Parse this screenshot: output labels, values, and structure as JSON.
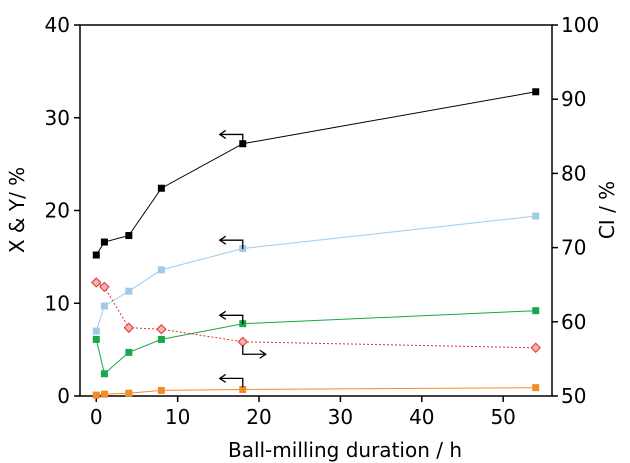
{
  "chart_data": {
    "type": "line",
    "xlabel": "Ball-milling duration / h",
    "ylabel_left": "X & Y/ %",
    "ylabel_right": "CI / %",
    "xlim": [
      -2,
      56
    ],
    "ylim_left": [
      0,
      40
    ],
    "ylim_right": [
      50,
      100
    ],
    "x_ticks": [
      0,
      10,
      20,
      30,
      40,
      50
    ],
    "y_left_ticks": [
      0,
      10,
      20,
      30,
      40
    ],
    "y_right_ticks": [
      50,
      60,
      70,
      80,
      90,
      100
    ],
    "grid": false,
    "series": [
      {
        "axis": "left",
        "color": "#000000",
        "marker": "square",
        "line": "solid",
        "x": [
          0,
          1,
          4,
          8,
          18,
          54
        ],
        "y": [
          15.2,
          16.6,
          17.3,
          22.4,
          27.2,
          32.8
        ]
      },
      {
        "axis": "left",
        "color": "#9fcbe8",
        "marker": "square",
        "line": "solid",
        "x": [
          0,
          1,
          4,
          8,
          18,
          54
        ],
        "y": [
          7.0,
          9.7,
          11.3,
          13.6,
          15.9,
          19.4
        ]
      },
      {
        "axis": "left",
        "color": "#1aa64a",
        "marker": "square",
        "line": "solid",
        "x": [
          0,
          1,
          4,
          8,
          18,
          54
        ],
        "y": [
          6.1,
          2.4,
          4.7,
          6.1,
          7.8,
          9.2
        ]
      },
      {
        "axis": "left",
        "color": "#f08c2a",
        "marker": "square",
        "line": "solid",
        "x": [
          0,
          1,
          4,
          8,
          18,
          54
        ],
        "y": [
          0.1,
          0.2,
          0.3,
          0.6,
          0.7,
          0.9
        ]
      },
      {
        "axis": "right",
        "color": "#e0312e",
        "marker": "diamond",
        "line": "dotted",
        "x": [
          0,
          1,
          4,
          8,
          18,
          54
        ],
        "y": [
          65.3,
          64.7,
          59.2,
          59.0,
          57.3,
          56.5
        ]
      }
    ],
    "annotations": [
      {
        "type": "arrow-left",
        "x": 18,
        "y_left": 28.2
      },
      {
        "type": "arrow-left",
        "x": 18,
        "y_left": 16.8
      },
      {
        "type": "arrow-left",
        "x": 18,
        "y_left": 8.7
      },
      {
        "type": "arrow-right",
        "x": 18,
        "y_left": 4.5
      },
      {
        "type": "arrow-left",
        "x": 18,
        "y_left": 1.9
      }
    ]
  }
}
